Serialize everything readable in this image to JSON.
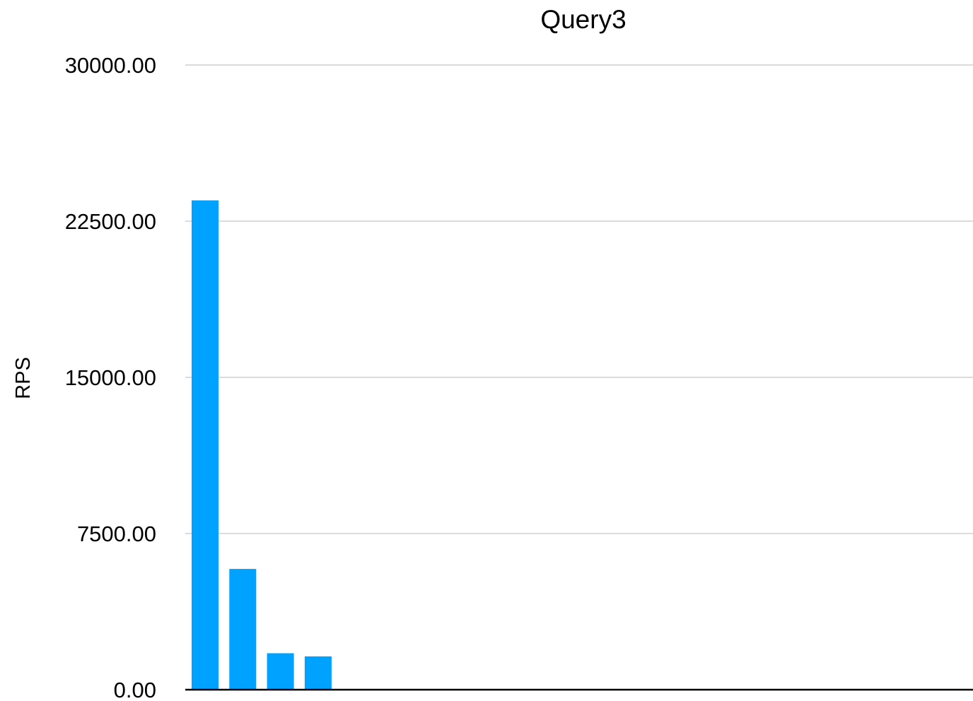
{
  "chart_data": {
    "type": "bar",
    "title": "Query3",
    "xlabel": "",
    "ylabel": "RPS",
    "ylim": [
      0,
      30000
    ],
    "yticks": [
      "0.00",
      "7500.00",
      "15000.00",
      "22500.00",
      "30000.00"
    ],
    "ytick_values": [
      0,
      7500,
      15000,
      22500,
      30000
    ],
    "categories": [
      "",
      "",
      "",
      ""
    ],
    "values": [
      23500,
      5800,
      1750,
      1600
    ],
    "grid": true,
    "legend": "none",
    "bar_color": "#00a2ff"
  }
}
